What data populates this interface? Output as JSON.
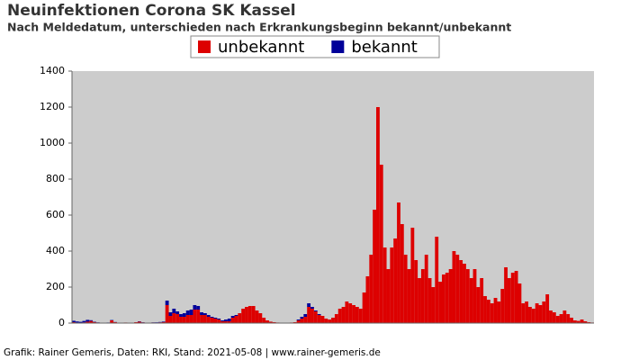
{
  "chart_data": {
    "type": "bar",
    "stacked": true,
    "title": "Neuinfektionen Corona SK Kassel",
    "subtitle": "Nach Meldedatum, unterschieden nach Erkrankungsbeginn bekannt/unbekannt",
    "footer": "Grafik: Rainer Gemeris, Daten: RKI, Stand: 2021-05-08 | www.rainer-gemeris.de",
    "ylim": [
      0,
      1400
    ],
    "yticks": [
      0,
      200,
      400,
      600,
      800,
      1000,
      1200,
      1400
    ],
    "grid": false,
    "legend": "top",
    "series": [
      {
        "name": "unbekannt",
        "color": "#dd0000",
        "values": [
          5,
          3,
          2,
          4,
          8,
          12,
          6,
          3,
          2,
          1,
          2,
          15,
          5,
          2,
          1,
          3,
          2,
          1,
          5,
          8,
          4,
          2,
          1,
          3,
          2,
          4,
          6,
          100,
          40,
          55,
          50,
          35,
          35,
          45,
          45,
          75,
          75,
          45,
          45,
          35,
          30,
          25,
          20,
          10,
          10,
          10,
          30,
          40,
          55,
          80,
          90,
          95,
          95,
          70,
          55,
          30,
          15,
          8,
          5,
          3,
          2,
          2,
          2,
          3,
          5,
          15,
          25,
          35,
          90,
          80,
          65,
          45,
          40,
          25,
          20,
          30,
          50,
          80,
          90,
          120,
          110,
          100,
          90,
          80,
          170,
          260,
          380,
          630,
          1200,
          880,
          420,
          300,
          420,
          470,
          670,
          550,
          380,
          300,
          530,
          350,
          250,
          300,
          380,
          250,
          200,
          480,
          230,
          270,
          280,
          300,
          400,
          380,
          350,
          330,
          300,
          250,
          300,
          200,
          250,
          150,
          130,
          110,
          140,
          120,
          190,
          310,
          250,
          280,
          290,
          220,
          110,
          120,
          90,
          80,
          110,
          100,
          120,
          160,
          70,
          60,
          40,
          50,
          70,
          50,
          30,
          15,
          12,
          20,
          10,
          5,
          3
        ]
      },
      {
        "name": "bekannt",
        "color": "#000099",
        "values": [
          8,
          6,
          5,
          8,
          10,
          4,
          2,
          1,
          0,
          0,
          1,
          2,
          1,
          0,
          0,
          0,
          0,
          0,
          0,
          2,
          1,
          0,
          0,
          1,
          2,
          2,
          3,
          25,
          20,
          25,
          15,
          15,
          20,
          25,
          30,
          25,
          20,
          15,
          10,
          10,
          5,
          5,
          5,
          5,
          10,
          15,
          10,
          5,
          0,
          0,
          0,
          0,
          0,
          0,
          0,
          0,
          0,
          0,
          0,
          0,
          0,
          0,
          0,
          0,
          0,
          5,
          10,
          15,
          20,
          10,
          5,
          5,
          0,
          0,
          0,
          0,
          0,
          0,
          0,
          0,
          0,
          0,
          0,
          0,
          0,
          0,
          0,
          0,
          0,
          0,
          0,
          0,
          0,
          0,
          0,
          0,
          0,
          0,
          0,
          0,
          0,
          0,
          0,
          0,
          0,
          0,
          0,
          0,
          0,
          0,
          0,
          0,
          0,
          0,
          0,
          0,
          0,
          0,
          0,
          0,
          0,
          0,
          0,
          0,
          0,
          0,
          0,
          0,
          0,
          0,
          0,
          0,
          0,
          0,
          0,
          0,
          0,
          0,
          0,
          0,
          0,
          0,
          0,
          0,
          0,
          0,
          0,
          0,
          0,
          0
        ]
      }
    ]
  }
}
